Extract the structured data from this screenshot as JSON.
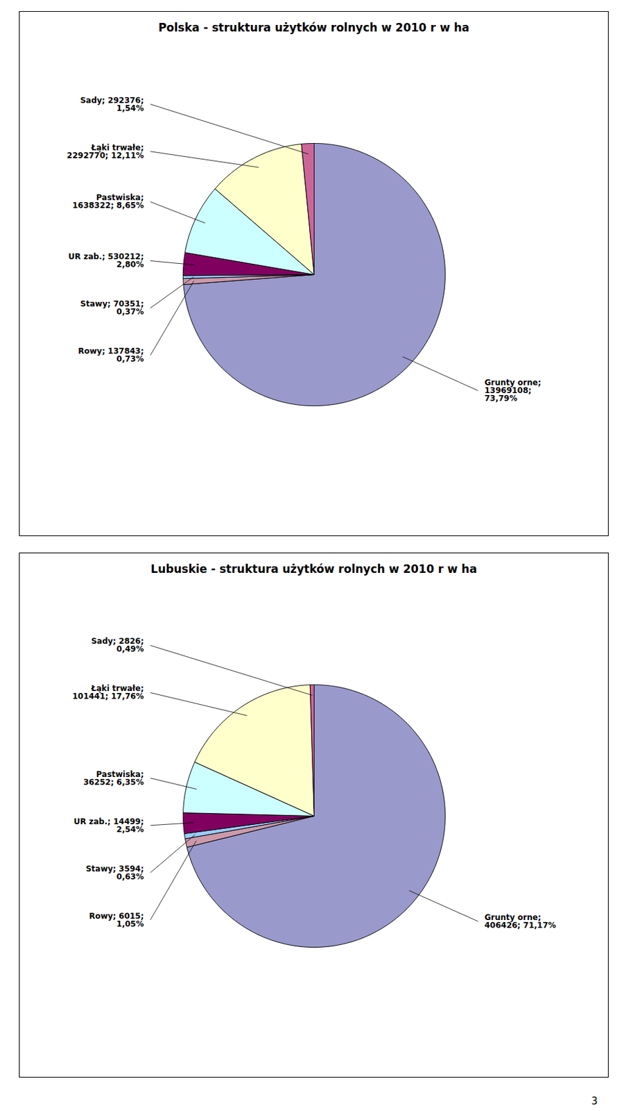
{
  "chart_data": [
    {
      "type": "pie",
      "title": "Polska - struktura użytków rolnych w 2010 r w ha",
      "values": [
        13969108,
        137843,
        70351,
        530212,
        1638322,
        2292770,
        292376
      ],
      "colors": [
        "#9999CC",
        "#CC99AA",
        "#99CCFF",
        "#800060",
        "#CCFFFF",
        "#FFFFCC",
        "#CC6699"
      ],
      "value_labels": [
        "Grunty orne;\n13969108;\n73,79%",
        "Rowy; 137843;\n0,73%",
        "Stawy; 70351;\n0,37%",
        "UR zab.; 530212;\n2,80%",
        "Pastwiska;\n1638322; 8,65%",
        "Łąki trwałe;\n2292770; 12,11%",
        "Sady; 292376;\n1,54%"
      ]
    },
    {
      "type": "pie",
      "title": "Lubuskie - struktura użytków rolnych w 2010 r w ha",
      "values": [
        406426,
        6015,
        3594,
        14499,
        36252,
        101441,
        2826
      ],
      "colors": [
        "#9999CC",
        "#CC99AA",
        "#99CCFF",
        "#800060",
        "#CCFFFF",
        "#FFFFCC",
        "#CC6699"
      ],
      "value_labels": [
        "Grunty orne;\n406426; 71,17%",
        "Rowy; 6015;\n1,05%",
        "Stawy; 3594;\n0,63%",
        "UR zab.; 14499;\n2,54%",
        "Pastwiska;\n36252; 6,35%",
        "Łąki trwałe;\n101441; 17,76%",
        "Sady; 2826;\n0,49%"
      ],
      "annotations": [
        "3"
      ]
    }
  ]
}
